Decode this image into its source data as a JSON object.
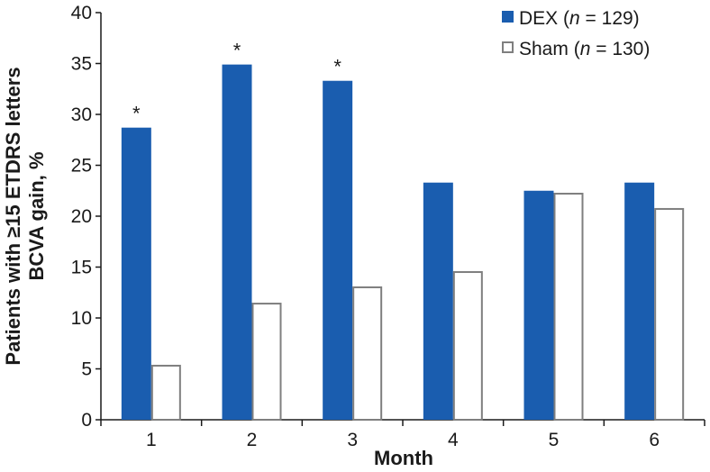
{
  "chart_data": {
    "type": "bar",
    "title": "",
    "xlabel": "Month",
    "ylabel_line1": "Patients with ≥15 ETDRS letters",
    "ylabel_line2": "BCVA gain, %",
    "categories": [
      "1",
      "2",
      "3",
      "4",
      "5",
      "6"
    ],
    "ylim": [
      0,
      40
    ],
    "yticks": [
      0,
      5,
      10,
      15,
      20,
      25,
      30,
      35,
      40
    ],
    "grid": false,
    "legend_position": "top-right",
    "series": [
      {
        "name": "DEX",
        "n_label": "n",
        "n_value": "= 129)",
        "legend_prefix": "DEX (",
        "values": [
          28.7,
          34.9,
          33.3,
          23.3,
          22.5,
          23.3
        ],
        "color": "#1a5daf",
        "fill": "solid"
      },
      {
        "name": "Sham",
        "n_label": "n",
        "n_value": "= 130)",
        "legend_prefix": "Sham (",
        "values": [
          5.4,
          11.5,
          13.1,
          14.6,
          22.3,
          20.8
        ],
        "color": "#7f7f7f",
        "fill": "white"
      }
    ],
    "annotations": [
      {
        "category": "1",
        "series": "DEX",
        "text": "*"
      },
      {
        "category": "2",
        "series": "DEX",
        "text": "*"
      },
      {
        "category": "3",
        "series": "DEX",
        "text": "*"
      }
    ]
  }
}
